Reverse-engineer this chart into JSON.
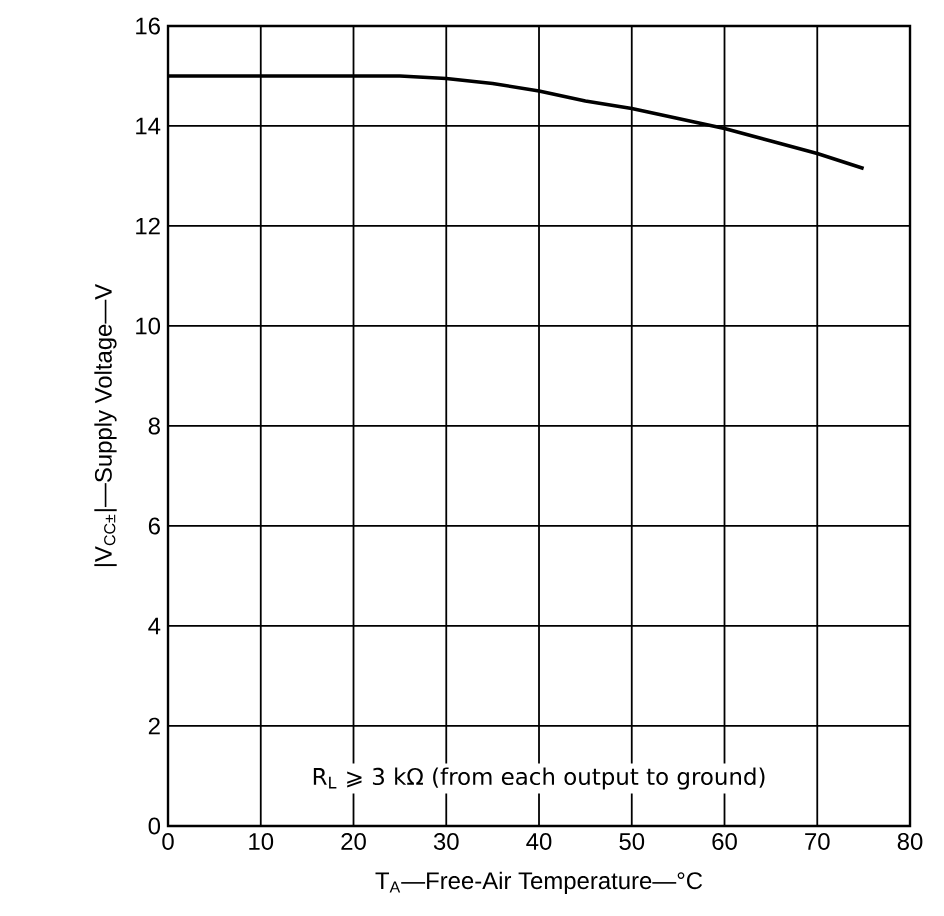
{
  "chart_data": {
    "type": "line",
    "xlabel": "T$_{A}$—Free-Air Temperature—°C",
    "ylabel": "|V$_{CC±}$|—Supply Voltage—V",
    "x": [
      0,
      5,
      10,
      15,
      20,
      25,
      30,
      35,
      40,
      45,
      50,
      55,
      60,
      65,
      70,
      75
    ],
    "series": [
      {
        "color": "#000000",
        "values": [
          15,
          15,
          15,
          15,
          15,
          15,
          14.95,
          14.85,
          14.7,
          14.5,
          14.35,
          14.15,
          13.95,
          13.7,
          13.45,
          13.15
        ]
      }
    ],
    "xlim": [
      0,
      80
    ],
    "xticks": [
      0,
      10,
      20,
      30,
      40,
      50,
      60,
      70,
      80
    ],
    "ylim": [
      0,
      16
    ],
    "yticks": [
      0,
      2,
      4,
      6,
      8,
      10,
      12,
      14,
      16
    ],
    "grid": true,
    "marker": "none",
    "line_style": "solid",
    "annotations": [
      "R$_{L}$ ⩾ 3 kΩ (from each output to ground)"
    ]
  }
}
